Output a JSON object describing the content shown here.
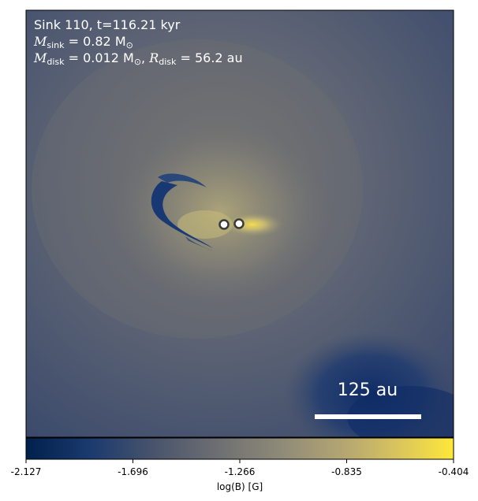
{
  "annotation": {
    "line1": "Sink 110, t=116.21 kyr",
    "m_sink_label": "M",
    "m_sink_sub": "sink",
    "m_sink_value": " = 0.82 M",
    "m_sink_unit_sub": "⊙",
    "m_disk_label": "M",
    "m_disk_sub": "disk",
    "m_disk_value": " = 0.012 M",
    "m_disk_unit_sub": "⊙",
    "r_disk_sep": ", ",
    "r_disk_label": "R",
    "r_disk_sub": "disk",
    "r_disk_value": " = 56.2 au"
  },
  "scale_bar": {
    "label": "125 au"
  },
  "colorbar": {
    "label": "log(B) [G]",
    "ticks": [
      "-2.127",
      "-1.696",
      "-1.266",
      "-0.835",
      "-0.404"
    ],
    "colormap": "cividis"
  },
  "sinks": [
    {
      "name": "sink-left"
    },
    {
      "name": "sink-right"
    }
  ]
}
